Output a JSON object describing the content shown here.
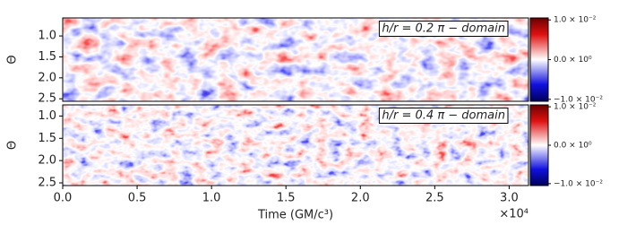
{
  "chart_data": [
    {
      "type": "heatmap",
      "annotation": "h/r = 0.2  π − domain",
      "y_label": "Θ",
      "xlim": [
        0,
        3.13
      ],
      "ylim": [
        2.56,
        0.57
      ],
      "yticks": [
        {
          "value": 1.0,
          "label": "1.0"
        },
        1.5,
        {
          "value": 2.0,
          "label": "2.0"
        },
        2.5
      ],
      "clim": [
        -0.0105,
        0.0105
      ],
      "cticks": [
        {
          "value": 0.01,
          "label": "1.0 × 10⁻²"
        },
        {
          "value": 0,
          "label": "0.0 × 10⁰"
        },
        {
          "value": -0.01,
          "label": "−1.0 × 10⁻²"
        }
      ]
    },
    {
      "type": "heatmap",
      "annotation": "h/r = 0.4  π − domain",
      "y_label": "Θ",
      "xlim": [
        0,
        3.13
      ],
      "ylim": [
        2.56,
        0.75
      ],
      "yticks": [
        {
          "value": 1.0,
          "label": "1.0"
        },
        1.5,
        {
          "value": 2.0,
          "label": "2.0"
        },
        2.5
      ],
      "clim": [
        -0.0105,
        0.0105
      ],
      "cticks": [
        {
          "value": 0.01,
          "label": "1.0 × 10⁻²"
        },
        {
          "value": 0,
          "label": "0.0 × 10⁰"
        },
        {
          "value": -0.01,
          "label": "−1.0 × 10⁻²"
        }
      ],
      "x_label": "Time (GM/c³)",
      "x_multiplier": "×10⁴",
      "xticks": [
        {
          "value": 0,
          "label": "0.0"
        },
        0.5,
        {
          "value": 1.0,
          "label": "1.0"
        },
        1.5,
        {
          "value": 2.0,
          "label": "2.0"
        },
        2.5,
        {
          "value": 3.0,
          "label": "3.0"
        }
      ]
    }
  ]
}
